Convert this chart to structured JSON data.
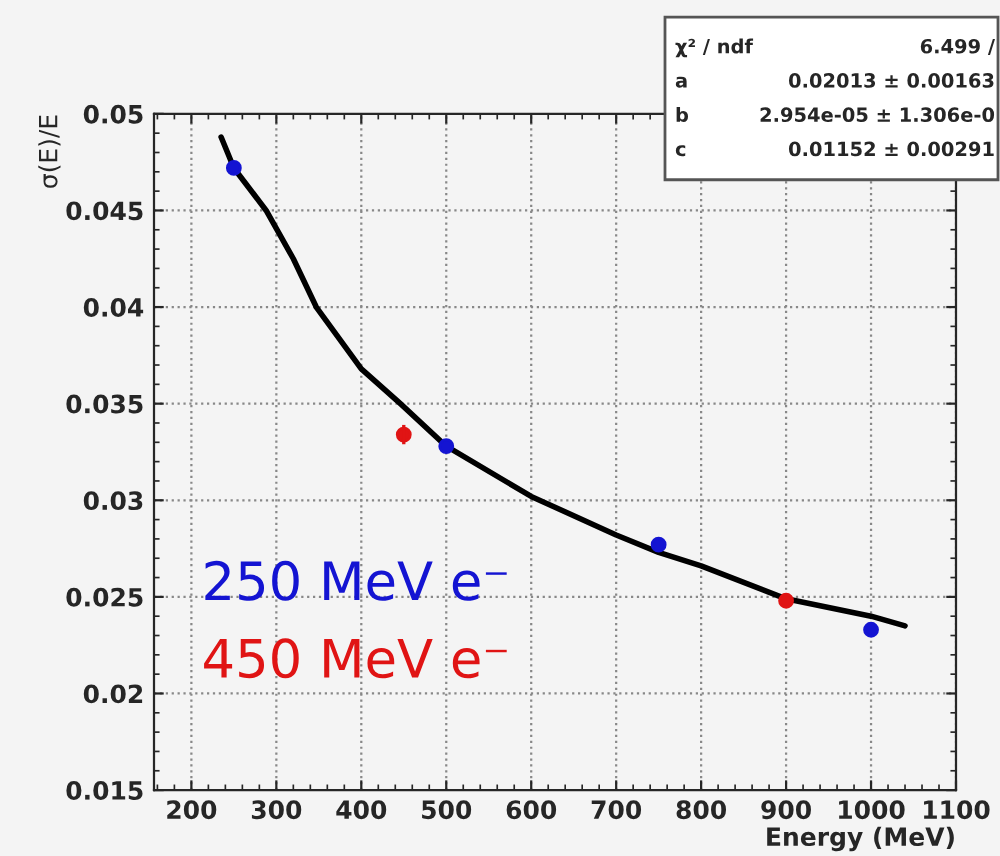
{
  "chart_data": {
    "type": "scatter",
    "xlabel": "Energy (MeV)",
    "ylabel": "σ(E)/E",
    "series": [
      {
        "name": "250 MeV e⁻",
        "color": "#1414d2",
        "x": [
          250,
          500,
          750,
          1000
        ],
        "values": [
          0.0472,
          0.0328,
          0.0277,
          0.0233
        ]
      },
      {
        "name": "450 MeV e⁻",
        "color": "#e01414",
        "x": [
          450,
          900
        ],
        "values": [
          0.0334,
          0.0248
        ],
        "errors": [
          0.0005,
          null
        ]
      },
      {
        "type": "line",
        "color": "#000000",
        "marker": "none",
        "x": [
          235,
          250,
          288,
          320,
          347,
          400,
          446,
          500,
          600,
          700,
          750,
          800,
          900,
          1000,
          1040
        ],
        "values": [
          0.0488,
          0.0472,
          0.045,
          0.0425,
          0.04,
          0.0368,
          0.035,
          0.0328,
          0.0302,
          0.0282,
          0.0273,
          0.0266,
          0.0249,
          0.024,
          0.0235
        ]
      }
    ],
    "annotations": [
      "χ² / ndf",
      "6.499 /",
      "a",
      "0.02013 ± 0.00163",
      "b",
      "2.954e-05 ± 1.306e-0",
      "c",
      "0.01152 ± 0.00291"
    ],
    "xlim": [
      156,
      1100
    ],
    "xticks": [
      200,
      300,
      400,
      500,
      600,
      700,
      800,
      900,
      1000,
      1100
    ],
    "ylim": [
      0.015,
      0.05
    ],
    "yticks": [
      0.015,
      0.02,
      0.025,
      0.03,
      0.035,
      0.04,
      0.045,
      0.05
    ],
    "grid": true,
    "legend": "bottom left",
    "marker": "circle"
  }
}
